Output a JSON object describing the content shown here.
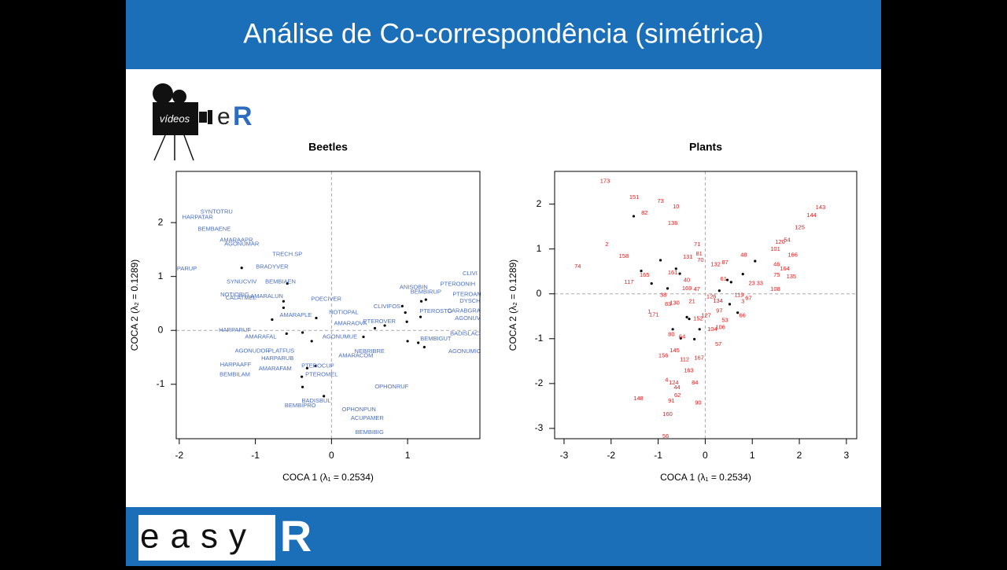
{
  "slide": {
    "title": "Análise de Co-correspondência (simétrica)",
    "logo_text": "vídeos",
    "logo_e": "e",
    "logo_r": "R",
    "footer_text": "easy",
    "footer_r": "R"
  },
  "chart_data": [
    {
      "type": "scatter",
      "title": "Beetles",
      "xlabel": "COCA 1  (λ₁ = 0.2534)",
      "ylabel": "COCA 2  (λ₂ = 0.1289)",
      "xlim": [
        -2.04,
        1.95
      ],
      "ylim": [
        -2.01,
        2.95
      ],
      "xticks": [
        -2,
        -1,
        0,
        1
      ],
      "yticks": [
        -1,
        0,
        1,
        2
      ],
      "zero_lines": true,
      "series": [
        {
          "color": "#000000",
          "x": [
            -1.18,
            -0.58,
            -0.63,
            -0.63,
            -0.78,
            -0.2,
            -0.59,
            -0.38,
            -0.26,
            0.42,
            0.57,
            0.7,
            0.97,
            0.99,
            0.93,
            1.18,
            1.17,
            1.0,
            1.14,
            1.22,
            -0.21,
            -0.32,
            -0.39,
            -0.38,
            -0.1,
            1.24
          ],
          "y": [
            1.16,
            0.87,
            0.54,
            0.42,
            0.2,
            0.23,
            -0.06,
            -0.04,
            -0.2,
            -0.12,
            0.04,
            0.09,
            0.33,
            0.16,
            0.45,
            0.54,
            0.25,
            -0.2,
            -0.23,
            -0.31,
            -0.66,
            -0.7,
            -0.86,
            -1.05,
            -1.22,
            0.57
          ]
        },
        {
          "color": "#4a6fc4",
          "labels": [
            "SYNTOTRU",
            "HARPATAR",
            "BEMBAENE",
            "AMARAAPR",
            "AGONUMAR",
            "TRECH.SP",
            "BRADYVER",
            "PARUP",
            "BEMBIAEN",
            "SYNUCVIV",
            "NOTIOBIG",
            "CALATMEL",
            "AMARALUN",
            "POECIVER",
            "HARPARUF",
            "AMARAPLE",
            "NOTIOPAL",
            "AMARAFAL",
            "AMARAOVA",
            "PTEROVER",
            "AGONUMUE",
            "CLIVIFOS",
            "ANISOBIN",
            "PTEROONIH",
            "BEMBIRUP",
            "CLIVI",
            "PTEROAN",
            "DYSCH",
            "CARABGRA",
            "AGONUV",
            "PTEROSTO",
            "BADISLAC",
            "BEMBIGUT",
            "AGONUMIC",
            "NEBRIBRE",
            "AMARACOM",
            "AGONUDOR",
            "PLATFUS",
            "HARPARUB",
            "HARPAAFF",
            "AMARAFAM",
            "BEMBILAM",
            "PTEROCUP",
            "PTEROMEL",
            "OPHONRUF",
            "BADISBUL",
            "BEMBIPRO",
            "OPHONPUN",
            "ACUPAMER",
            "BEMBIBIG"
          ],
          "x": [
            -1.51,
            -1.76,
            -1.54,
            -1.25,
            -1.18,
            -0.58,
            -0.78,
            -1.9,
            -0.67,
            -1.18,
            -1.27,
            -1.19,
            -0.85,
            -0.07,
            -1.27,
            -0.47,
            0.16,
            -0.93,
            0.25,
            0.63,
            0.11,
            0.73,
            1.08,
            1.66,
            1.24,
            1.82,
            1.78,
            1.82,
            1.74,
            1.79,
            1.37,
            1.75,
            1.37,
            1.75,
            0.5,
            0.32,
            -1.04,
            -0.66,
            -0.71,
            -1.26,
            -0.74,
            -1.27,
            -0.18,
            -0.13,
            0.79,
            -0.2,
            -0.41,
            0.36,
            0.47,
            0.5
          ],
          "y": [
            2.2,
            2.1,
            1.88,
            1.67,
            1.6,
            1.41,
            1.18,
            1.14,
            0.9,
            0.9,
            0.66,
            0.6,
            0.63,
            0.58,
            0.0,
            0.28,
            0.33,
            -0.12,
            0.13,
            0.16,
            -0.12,
            0.44,
            0.8,
            0.86,
            0.71,
            1.05,
            0.67,
            0.54,
            0.36,
            0.22,
            0.35,
            -0.06,
            -0.16,
            -0.39,
            -0.39,
            -0.47,
            -0.38,
            -0.38,
            -0.52,
            -0.64,
            -0.71,
            -0.82,
            -0.66,
            -0.82,
            -1.05,
            -1.31,
            -1.4,
            -1.47,
            -1.63,
            -1.89
          ]
        }
      ]
    },
    {
      "type": "scatter",
      "title": "Plants",
      "xlabel": "COCA 1  (λ₁ = 0.2534)",
      "ylabel": "COCA 2  (λ₂ = 0.1289)",
      "xlim": [
        -3.2,
        3.22
      ],
      "ylim": [
        -3.23,
        2.73
      ],
      "xticks": [
        -3,
        -2,
        -1,
        0,
        1,
        2,
        3
      ],
      "yticks": [
        -3,
        -2,
        -1,
        0,
        1,
        2
      ],
      "zero_lines": true,
      "series": [
        {
          "color": "#000000",
          "x": [
            -1.52,
            -0.95,
            -1.36,
            -1.14,
            -0.8,
            -0.62,
            -0.54,
            -0.39,
            -0.69,
            -0.52,
            -0.23,
            -0.12,
            -0.34,
            0.3,
            0.47,
            0.55,
            1.06,
            0.8,
            0.69,
            0.52
          ],
          "y": [
            1.73,
            0.75,
            0.51,
            0.23,
            0.12,
            0.56,
            0.45,
            -0.52,
            -0.79,
            -0.99,
            -1.01,
            -0.79,
            -0.56,
            0.07,
            0.31,
            0.26,
            0.73,
            0.44,
            -0.42,
            -0.23
          ]
        },
        {
          "color": "#e01a1a",
          "labels": [
            "173",
            "151",
            "73",
            "10",
            "82",
            "136",
            "2",
            "158",
            "74",
            "71",
            "81",
            "131",
            "70",
            "132",
            "87",
            "165",
            "117",
            "161",
            "40",
            "169",
            "47",
            "38",
            "83",
            "130",
            "21",
            "1",
            "171",
            "97",
            "127",
            "152",
            "53",
            "104",
            "106",
            "66",
            "57",
            "134",
            "126",
            "119",
            "67",
            "61",
            "48",
            "23",
            "33",
            "108",
            "75",
            "46",
            "101",
            "120",
            "54",
            "135",
            "164",
            "166",
            "125",
            "144",
            "143",
            "156",
            "145",
            "163",
            "112",
            "167",
            "84",
            "4",
            "44",
            "124",
            "62",
            "91",
            "90",
            "160",
            "148",
            "56",
            "80",
            "64",
            "3"
          ],
          "x": [
            -2.13,
            -1.51,
            -0.95,
            -0.62,
            -1.29,
            -0.69,
            -2.09,
            -1.73,
            -2.71,
            -0.17,
            -0.13,
            -0.37,
            -0.1,
            0.22,
            0.42,
            -1.29,
            -1.62,
            -0.69,
            -0.39,
            -0.39,
            -0.18,
            -0.89,
            -0.79,
            -0.65,
            -0.28,
            -1.19,
            -1.09,
            0.3,
            0.02,
            -0.15,
            0.42,
            0.15,
            0.32,
            0.79,
            0.28,
            0.27,
            0.13,
            0.72,
            0.92,
            0.39,
            0.82,
            0.99,
            1.16,
            1.49,
            1.52,
            1.52,
            1.49,
            1.59,
            1.74,
            1.83,
            1.69,
            1.86,
            2.01,
            2.26,
            2.45,
            -0.89,
            -0.65,
            -0.35,
            -0.44,
            -0.13,
            -0.22,
            -0.82,
            -0.6,
            -0.67,
            -0.59,
            -0.72,
            -0.15,
            -0.8,
            -1.42,
            -0.84,
            -0.72,
            -0.49,
            0.8
          ],
          "y": [
            2.51,
            2.15,
            2.06,
            1.94,
            1.8,
            1.57,
            1.1,
            0.84,
            0.61,
            1.1,
            0.89,
            0.82,
            0.75,
            0.65,
            0.7,
            0.42,
            0.26,
            0.47,
            0.3,
            0.12,
            0.1,
            -0.03,
            -0.23,
            -0.21,
            -0.17,
            -0.4,
            -0.47,
            -0.38,
            -0.49,
            -0.56,
            -0.59,
            -0.79,
            -0.75,
            -0.49,
            -1.13,
            -0.16,
            -0.07,
            -0.03,
            -0.1,
            0.33,
            0.86,
            0.23,
            0.23,
            0.1,
            0.42,
            0.65,
            0.99,
            1.15,
            1.2,
            0.38,
            0.56,
            0.86,
            1.48,
            1.75,
            1.92,
            -1.38,
            -1.27,
            -1.71,
            -1.47,
            -1.43,
            -1.99,
            -1.92,
            -2.09,
            -1.99,
            -2.27,
            -2.39,
            -2.43,
            -2.69,
            -2.34,
            -3.18,
            -0.91,
            -0.96,
            -0.17
          ]
        }
      ]
    }
  ]
}
